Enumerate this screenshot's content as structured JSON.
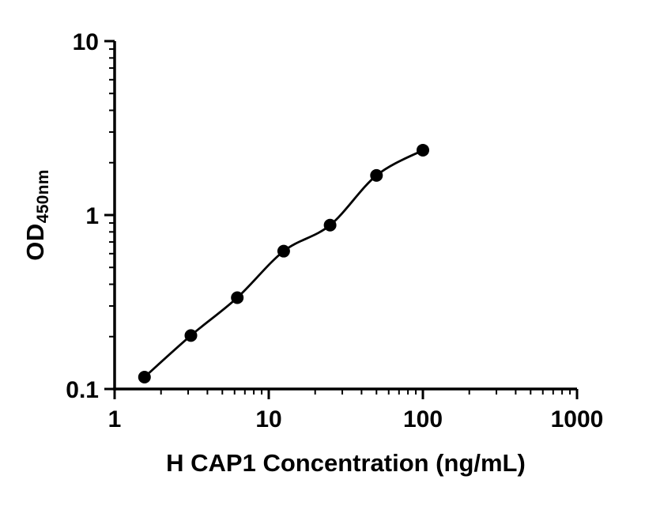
{
  "chart_data": {
    "type": "scatter",
    "title": "",
    "xlabel": "H CAP1 Concentration (ng/mL)",
    "ylabel": "OD",
    "ylabel_sub": "450nm",
    "x_scale": "log",
    "y_scale": "log",
    "xlim": [
      1,
      1000
    ],
    "ylim": [
      0.1,
      10
    ],
    "x_ticks": [
      1,
      10,
      100,
      1000
    ],
    "x_tick_labels": [
      "1",
      "10",
      "100",
      "1000"
    ],
    "y_ticks": [
      0.1,
      1,
      10
    ],
    "y_tick_labels": [
      "0.1",
      "1",
      "10"
    ],
    "grid": false,
    "legend": "none",
    "curve_fit": "4PL sigmoidal through points",
    "points": [
      {
        "x": 1.5625,
        "y": 0.117
      },
      {
        "x": 3.125,
        "y": 0.203
      },
      {
        "x": 6.25,
        "y": 0.335
      },
      {
        "x": 12.5,
        "y": 0.62
      },
      {
        "x": 25,
        "y": 0.875
      },
      {
        "x": 50,
        "y": 1.69
      },
      {
        "x": 100,
        "y": 2.36
      }
    ],
    "marker_color": "#000000",
    "line_color": "#000000",
    "axis_color": "#000000",
    "text_color": "#000000",
    "background_color": "#ffffff"
  }
}
